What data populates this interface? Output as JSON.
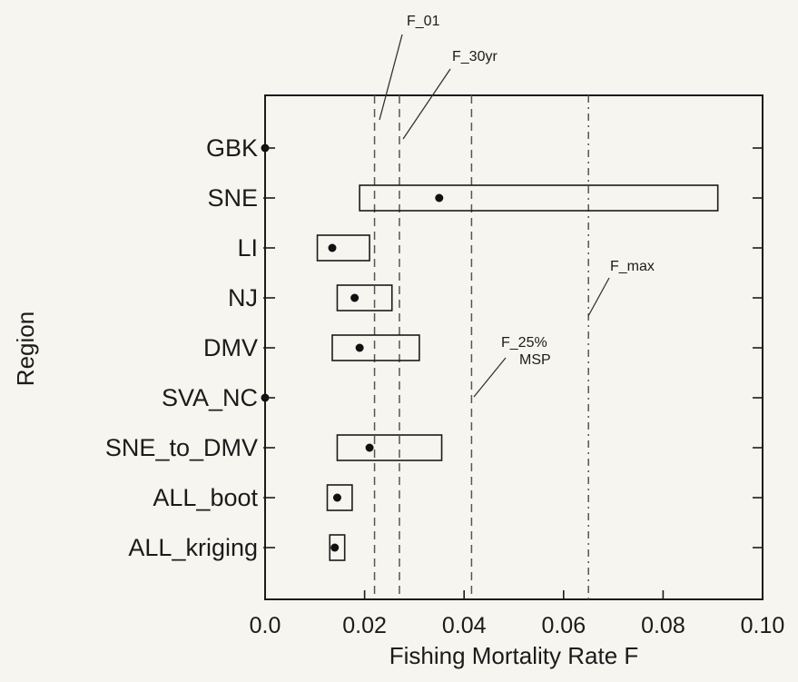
{
  "chart_data": {
    "type": "box",
    "title": "",
    "xlabel": "Fishing Mortality Rate F",
    "ylabel": "Region",
    "xlim": [
      0.0,
      0.1
    ],
    "x_ticks": [
      0.0,
      0.02,
      0.04,
      0.06,
      0.08,
      0.1
    ],
    "x_tick_labels": [
      "0.0",
      "0.02",
      "0.04",
      "0.06",
      "0.08",
      "0.10"
    ],
    "grid": false,
    "categories": [
      "GBK",
      "SNE",
      "LI",
      "NJ",
      "DMV",
      "SVA_NC",
      "SNE_to_DMV",
      "ALL_boot",
      "ALL_kriging"
    ],
    "series": [
      {
        "values": [
          {
            "region": "GBK",
            "point": 0.0,
            "low": null,
            "high": null
          },
          {
            "region": "SNE",
            "point": 0.035,
            "low": 0.019,
            "high": 0.091
          },
          {
            "region": "LI",
            "point": 0.0135,
            "low": 0.0105,
            "high": 0.021
          },
          {
            "region": "NJ",
            "point": 0.018,
            "low": 0.0145,
            "high": 0.0255
          },
          {
            "region": "DMV",
            "point": 0.019,
            "low": 0.0135,
            "high": 0.031
          },
          {
            "region": "SVA_NC",
            "point": 0.0,
            "low": null,
            "high": null
          },
          {
            "region": "SNE_to_DMV",
            "point": 0.021,
            "low": 0.0145,
            "high": 0.0355
          },
          {
            "region": "ALL_boot",
            "point": 0.0145,
            "low": 0.0125,
            "high": 0.0175
          },
          {
            "region": "ALL_kriging",
            "point": 0.014,
            "low": 0.013,
            "high": 0.016
          }
        ]
      }
    ],
    "reference_lines": [
      {
        "name": "F_01",
        "label_lines": [
          "F_01"
        ],
        "x": 0.022
      },
      {
        "name": "F_30yr",
        "label_lines": [
          "F_30yr"
        ],
        "x": 0.027
      },
      {
        "name": "F_25% MSP",
        "label_lines": [
          "F_25%",
          "MSP"
        ],
        "x": 0.0415
      },
      {
        "name": "F_max",
        "label_lines": [
          "F_max"
        ],
        "x": 0.065
      }
    ]
  }
}
